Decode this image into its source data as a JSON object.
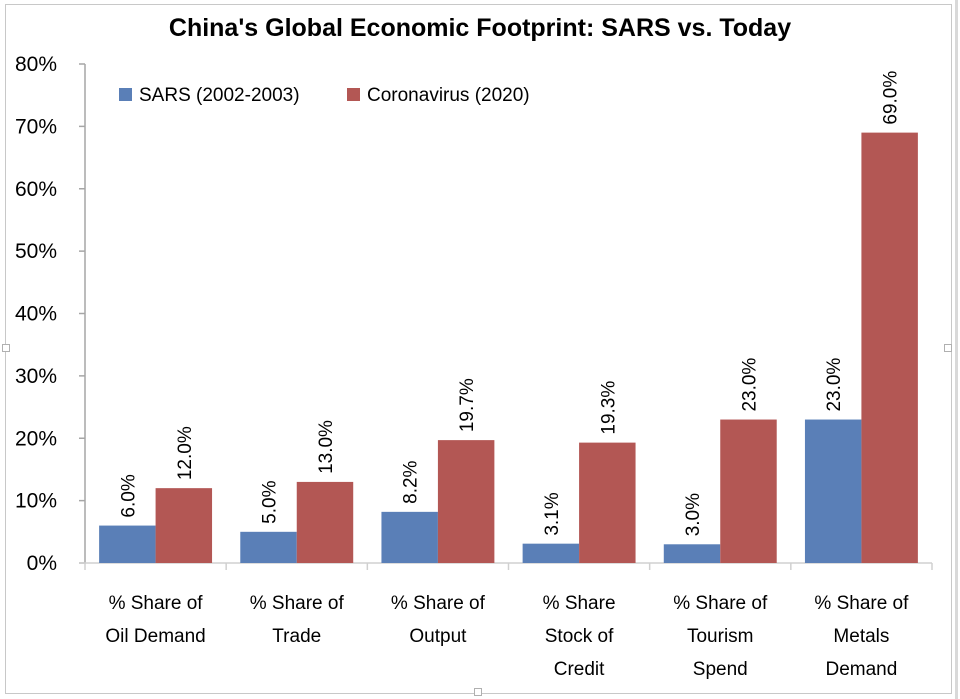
{
  "chart_data": {
    "type": "bar",
    "title": "China's Global Economic Footprint: SARS vs. Today",
    "xlabel": "",
    "ylabel": "",
    "ylim": [
      0,
      80
    ],
    "y_ticks": [
      "0%",
      "10%",
      "20%",
      "30%",
      "40%",
      "50%",
      "60%",
      "70%",
      "80%"
    ],
    "y_tick_values": [
      0,
      10,
      20,
      30,
      40,
      50,
      60,
      70,
      80
    ],
    "grid": false,
    "legend_position": "top-left",
    "categories": [
      [
        "% Share of",
        "Oil Demand"
      ],
      [
        "% Share of",
        "Trade"
      ],
      [
        "% Share of",
        "Output"
      ],
      [
        "% Share",
        "Stock of",
        "Credit"
      ],
      [
        "% Share of",
        "Tourism",
        "Spend"
      ],
      [
        "% Share of",
        "Metals",
        "Demand"
      ]
    ],
    "series": [
      {
        "name": "SARS (2002-2003)",
        "color": "#5a7fb7",
        "values": [
          6.0,
          5.0,
          8.2,
          3.1,
          3.0,
          23.0
        ],
        "labels": [
          "6.0%",
          "5.0%",
          "8.2%",
          "3.1%",
          "3.0%",
          "23.0%"
        ]
      },
      {
        "name": "Coronavirus (2020)",
        "color": "#b35754",
        "values": [
          12.0,
          13.0,
          19.7,
          19.3,
          23.0,
          69.0
        ],
        "labels": [
          "12.0%",
          "13.0%",
          "19.7%",
          "19.3%",
          "23.0%",
          "69.0%"
        ]
      }
    ]
  }
}
